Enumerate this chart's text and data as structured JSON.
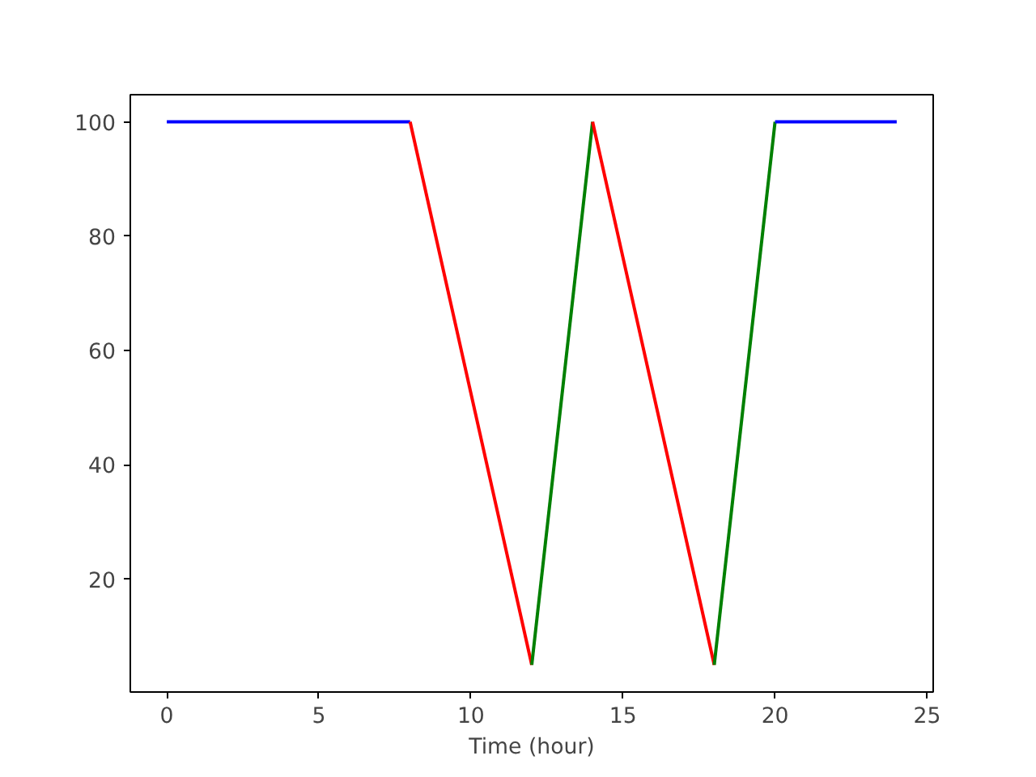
{
  "chart_data": {
    "type": "line",
    "xlabel": "Time (hour)",
    "xlim": [
      -1.2,
      25.2
    ],
    "ylim": [
      0.25,
      104.75
    ],
    "xticks": [
      0,
      5,
      10,
      15,
      20,
      25
    ],
    "yticks": [
      20,
      40,
      60,
      80,
      100
    ],
    "grid": false,
    "marker": "none",
    "line_style": "solid",
    "series": [
      {
        "color": "#0000ff",
        "x": [
          0,
          8
        ],
        "values": [
          100,
          100
        ]
      },
      {
        "color": "#ff0000",
        "x": [
          8,
          12
        ],
        "values": [
          100,
          5
        ]
      },
      {
        "color": "#008000",
        "x": [
          12,
          14
        ],
        "values": [
          5,
          100
        ]
      },
      {
        "color": "#ff0000",
        "x": [
          14,
          18
        ],
        "values": [
          100,
          5
        ]
      },
      {
        "color": "#008000",
        "x": [
          18,
          20
        ],
        "values": [
          5,
          100
        ]
      },
      {
        "color": "#0000ff",
        "x": [
          20,
          24
        ],
        "values": [
          100,
          100
        ]
      }
    ]
  }
}
